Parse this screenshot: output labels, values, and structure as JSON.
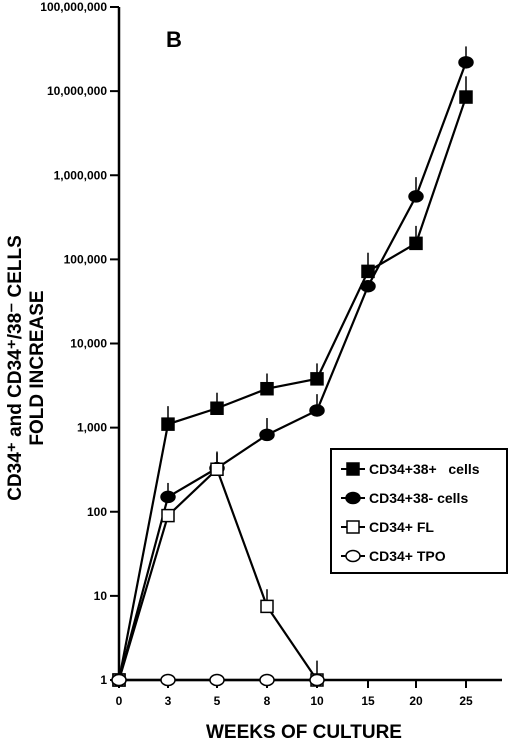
{
  "chart_data": {
    "type": "line",
    "panel_label": "B",
    "xlabel": "WEEKS OF CULTURE",
    "ylabel_line1": "CD34⁺ and CD34⁺/38⁻ CELLS",
    "ylabel_line2": "FOLD INCREASE",
    "y_scale": "log",
    "ylim": [
      1,
      100000000
    ],
    "y_ticks": [
      1,
      10,
      100,
      1000,
      10000,
      100000,
      1000000,
      10000000,
      100000000
    ],
    "y_tick_labels": [
      "1",
      "10",
      "100",
      "1,000",
      "10,000",
      "100,000",
      "1,000,000",
      "10,000,000",
      "100,000,000"
    ],
    "x_categories": [
      "0",
      "3",
      "5",
      "8",
      "10",
      "15",
      "20",
      "25"
    ],
    "legend_position": "right-middle",
    "grid": false,
    "series": [
      {
        "name": "CD34+38+   cells",
        "marker": "filled-square",
        "x": [
          "0",
          "3",
          "5",
          "8",
          "10",
          "15",
          "20",
          "25"
        ],
        "values": [
          1,
          1100,
          1700,
          2900,
          3800,
          72000,
          155000,
          8500000
        ],
        "error_upper": [
          null,
          1800,
          2600,
          4400,
          5800,
          120000,
          250000,
          15000000
        ]
      },
      {
        "name": "CD34+38- cells",
        "marker": "filled-circle",
        "x": [
          "0",
          "3",
          "5",
          "8",
          "10",
          "15",
          "20",
          "25"
        ],
        "values": [
          1,
          150,
          330,
          820,
          1600,
          48000,
          560000,
          22000000
        ],
        "error_upper": [
          null,
          220,
          500,
          1300,
          2500,
          null,
          950000,
          34000000
        ]
      },
      {
        "name": "CD34+ FL",
        "marker": "open-square",
        "x": [
          "0",
          "3",
          "5",
          "8",
          "10"
        ],
        "values": [
          1,
          90,
          320,
          7.5,
          1
        ],
        "error_upper": [
          null,
          null,
          520,
          12,
          1.7
        ]
      },
      {
        "name": "CD34+ TPO",
        "marker": "open-circle",
        "x": [
          "0",
          "3",
          "5",
          "8",
          "10"
        ],
        "values": [
          1,
          1,
          1,
          1,
          1
        ],
        "error_upper": [
          null,
          null,
          null,
          null,
          null
        ]
      }
    ]
  }
}
